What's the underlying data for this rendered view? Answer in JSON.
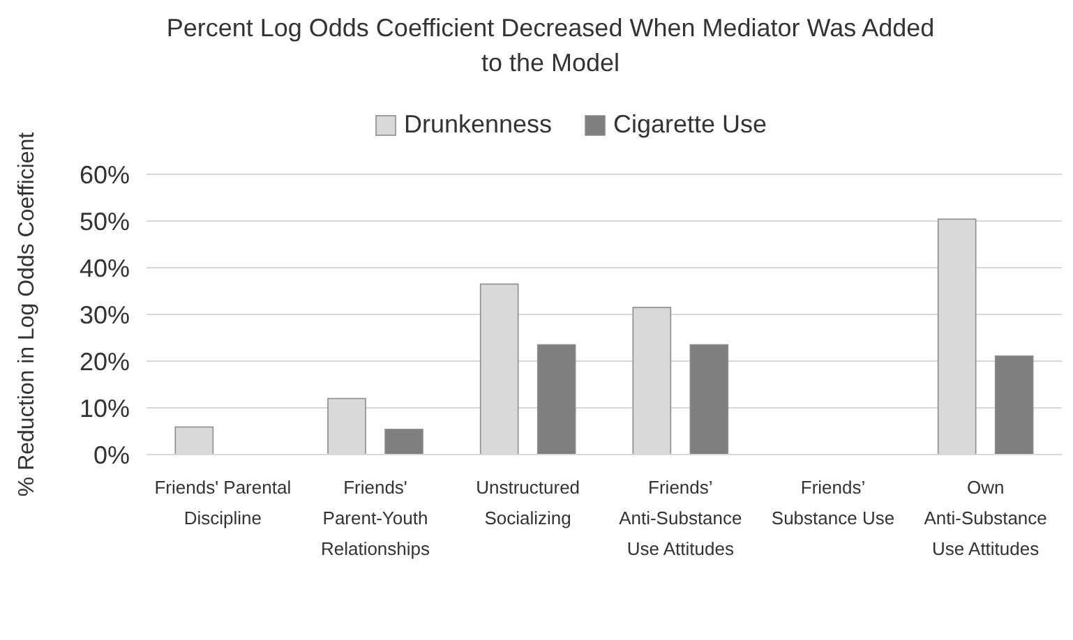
{
  "chart_data": {
    "type": "bar",
    "title": "Percent Log Odds Coefficient Decreased When Mediator Was Added to the Model",
    "ylabel": "% Reduction in Log Odds Coefficient",
    "categories": [
      "Friends' Parental Discipline",
      "Friends' Parent-Youth Relationships",
      "Unstructured Socializing",
      "Friends’ Anti-Substance Use Attitudes",
      "Friends’ Substance Use",
      "Own Anti-Substance Use Attitudes"
    ],
    "series": [
      {
        "name": "Drunkenness",
        "color": "#d9d9d9",
        "values": [
          0.059,
          0.12,
          0.365,
          0.315,
          null,
          0.504
        ]
      },
      {
        "name": "Cigarette Use",
        "color": "#7f7f7f",
        "values": [
          null,
          0.054,
          0.235,
          0.235,
          null,
          0.211
        ]
      }
    ],
    "ylim": [
      0,
      0.6
    ],
    "yticks": [
      {
        "value": 0,
        "label": "0%"
      },
      {
        "value": 0.1,
        "label": "10%"
      },
      {
        "value": 0.2,
        "label": "20%"
      },
      {
        "value": 0.3,
        "label": "30%"
      },
      {
        "value": 0.4,
        "label": "40%"
      },
      {
        "value": 0.5,
        "label": "50%"
      },
      {
        "value": 0.6,
        "label": "60%"
      }
    ],
    "grid": "y",
    "legend": "top"
  }
}
